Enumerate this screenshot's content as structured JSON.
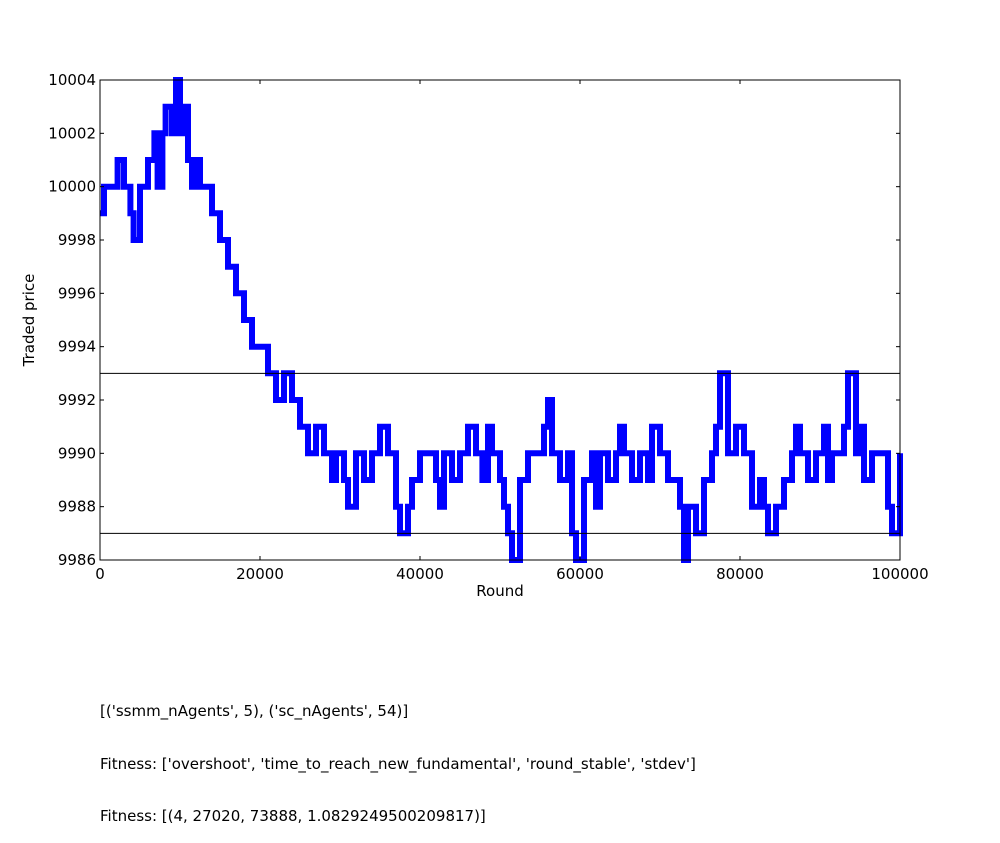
{
  "chart_data": {
    "type": "line",
    "title": "",
    "xlabel": "Round",
    "ylabel": "Traded price",
    "xlim": [
      0,
      100000
    ],
    "ylim": [
      9986,
      10004
    ],
    "xticks": [
      0,
      20000,
      40000,
      60000,
      80000,
      100000
    ],
    "yticks": [
      9986,
      9988,
      9990,
      9992,
      9994,
      9996,
      9998,
      10000,
      10002,
      10004
    ],
    "xtick_labels": [
      "0",
      "20000",
      "40000",
      "60000",
      "80000",
      "100000"
    ],
    "ytick_labels": [
      "9986",
      "9988",
      "9990",
      "9992",
      "9994",
      "9996",
      "9998",
      "10000",
      "10002",
      "10004"
    ],
    "grid": false,
    "series_color": "#0000ff",
    "reference_line_color": "#000000",
    "reference_lines": [
      9993,
      9987
    ],
    "series": [
      {
        "x": [
          0,
          500,
          1500,
          2200,
          3000,
          3800,
          4200,
          5000,
          5500,
          6000,
          6800,
          7200,
          7800,
          8200,
          9000,
          9500,
          10000,
          10500,
          11000,
          11500,
          12000,
          12500,
          13500,
          14000,
          15000,
          16000,
          17000,
          18000,
          19000,
          20000,
          21000,
          22000,
          23000,
          24000,
          25000,
          26000,
          27000,
          28000,
          29000,
          29500,
          30500,
          31000,
          32000,
          33000,
          34000,
          35000,
          36000,
          37000,
          37500,
          38500,
          39000,
          40000,
          41000,
          42000,
          42500,
          43000,
          44000,
          45000,
          46000,
          47000,
          47800,
          48500,
          49000,
          50000,
          50500,
          51000,
          51500,
          52500,
          53500,
          54500,
          55500,
          56000,
          56500,
          57500,
          58500,
          59000,
          59500,
          60500,
          61500,
          62000,
          62500,
          63500,
          64500,
          65000,
          65500,
          66500,
          67500,
          68500,
          69000,
          70000,
          71000,
          72000,
          72500,
          73000,
          73500,
          74500,
          75500,
          76500,
          77000,
          77500,
          78500,
          79500,
          80500,
          81500,
          82500,
          83000,
          83500,
          84500,
          85500,
          86500,
          87000,
          87500,
          88500,
          89500,
          90500,
          91000,
          91500,
          92500,
          93000,
          93500,
          94500,
          95000,
          95500,
          96500,
          97500,
          98500,
          99000,
          100000
        ],
        "y": [
          9999,
          10000,
          10000,
          10001,
          10000,
          9999,
          9998,
          10000,
          10000,
          10001,
          10002,
          10000,
          10002,
          10003,
          10002,
          10004,
          10002,
          10003,
          10001,
          10000,
          10001,
          10000,
          10000,
          9999,
          9998,
          9997,
          9996,
          9995,
          9994,
          9994,
          9993,
          9992,
          9993,
          9992,
          9991,
          9990,
          9991,
          9990,
          9989,
          9990,
          9989,
          9988,
          9990,
          9989,
          9990,
          9991,
          9990,
          9988,
          9987,
          9988,
          9989,
          9990,
          9990,
          9989,
          9988,
          9990,
          9989,
          9990,
          9991,
          9990,
          9989,
          9991,
          9990,
          9989,
          9988,
          9987,
          9986,
          9989,
          9990,
          9990,
          9991,
          9992,
          9990,
          9989,
          9990,
          9987,
          9986,
          9989,
          9990,
          9988,
          9990,
          9989,
          9990,
          9991,
          9990,
          9989,
          9990,
          9989,
          9991,
          9990,
          9989,
          9989,
          9988,
          9986,
          9988,
          9987,
          9989,
          9990,
          9991,
          9993,
          9990,
          9991,
          9990,
          9988,
          9989,
          9988,
          9987,
          9988,
          9989,
          9990,
          9991,
          9990,
          9989,
          9990,
          9991,
          9989,
          9990,
          9990,
          9991,
          9993,
          9990,
          9991,
          9989,
          9990,
          9990,
          9988,
          9987,
          9990
        ]
      }
    ]
  },
  "caption": {
    "line1": "[('ssmm_nAgents', 5), ('sc_nAgents', 54)]",
    "line2": "Fitness: ['overshoot', 'time_to_reach_new_fundamental', 'round_stable', 'stdev']",
    "line3": "Fitness: [(4, 27020, 73888, 1.0829249500209817)]"
  }
}
